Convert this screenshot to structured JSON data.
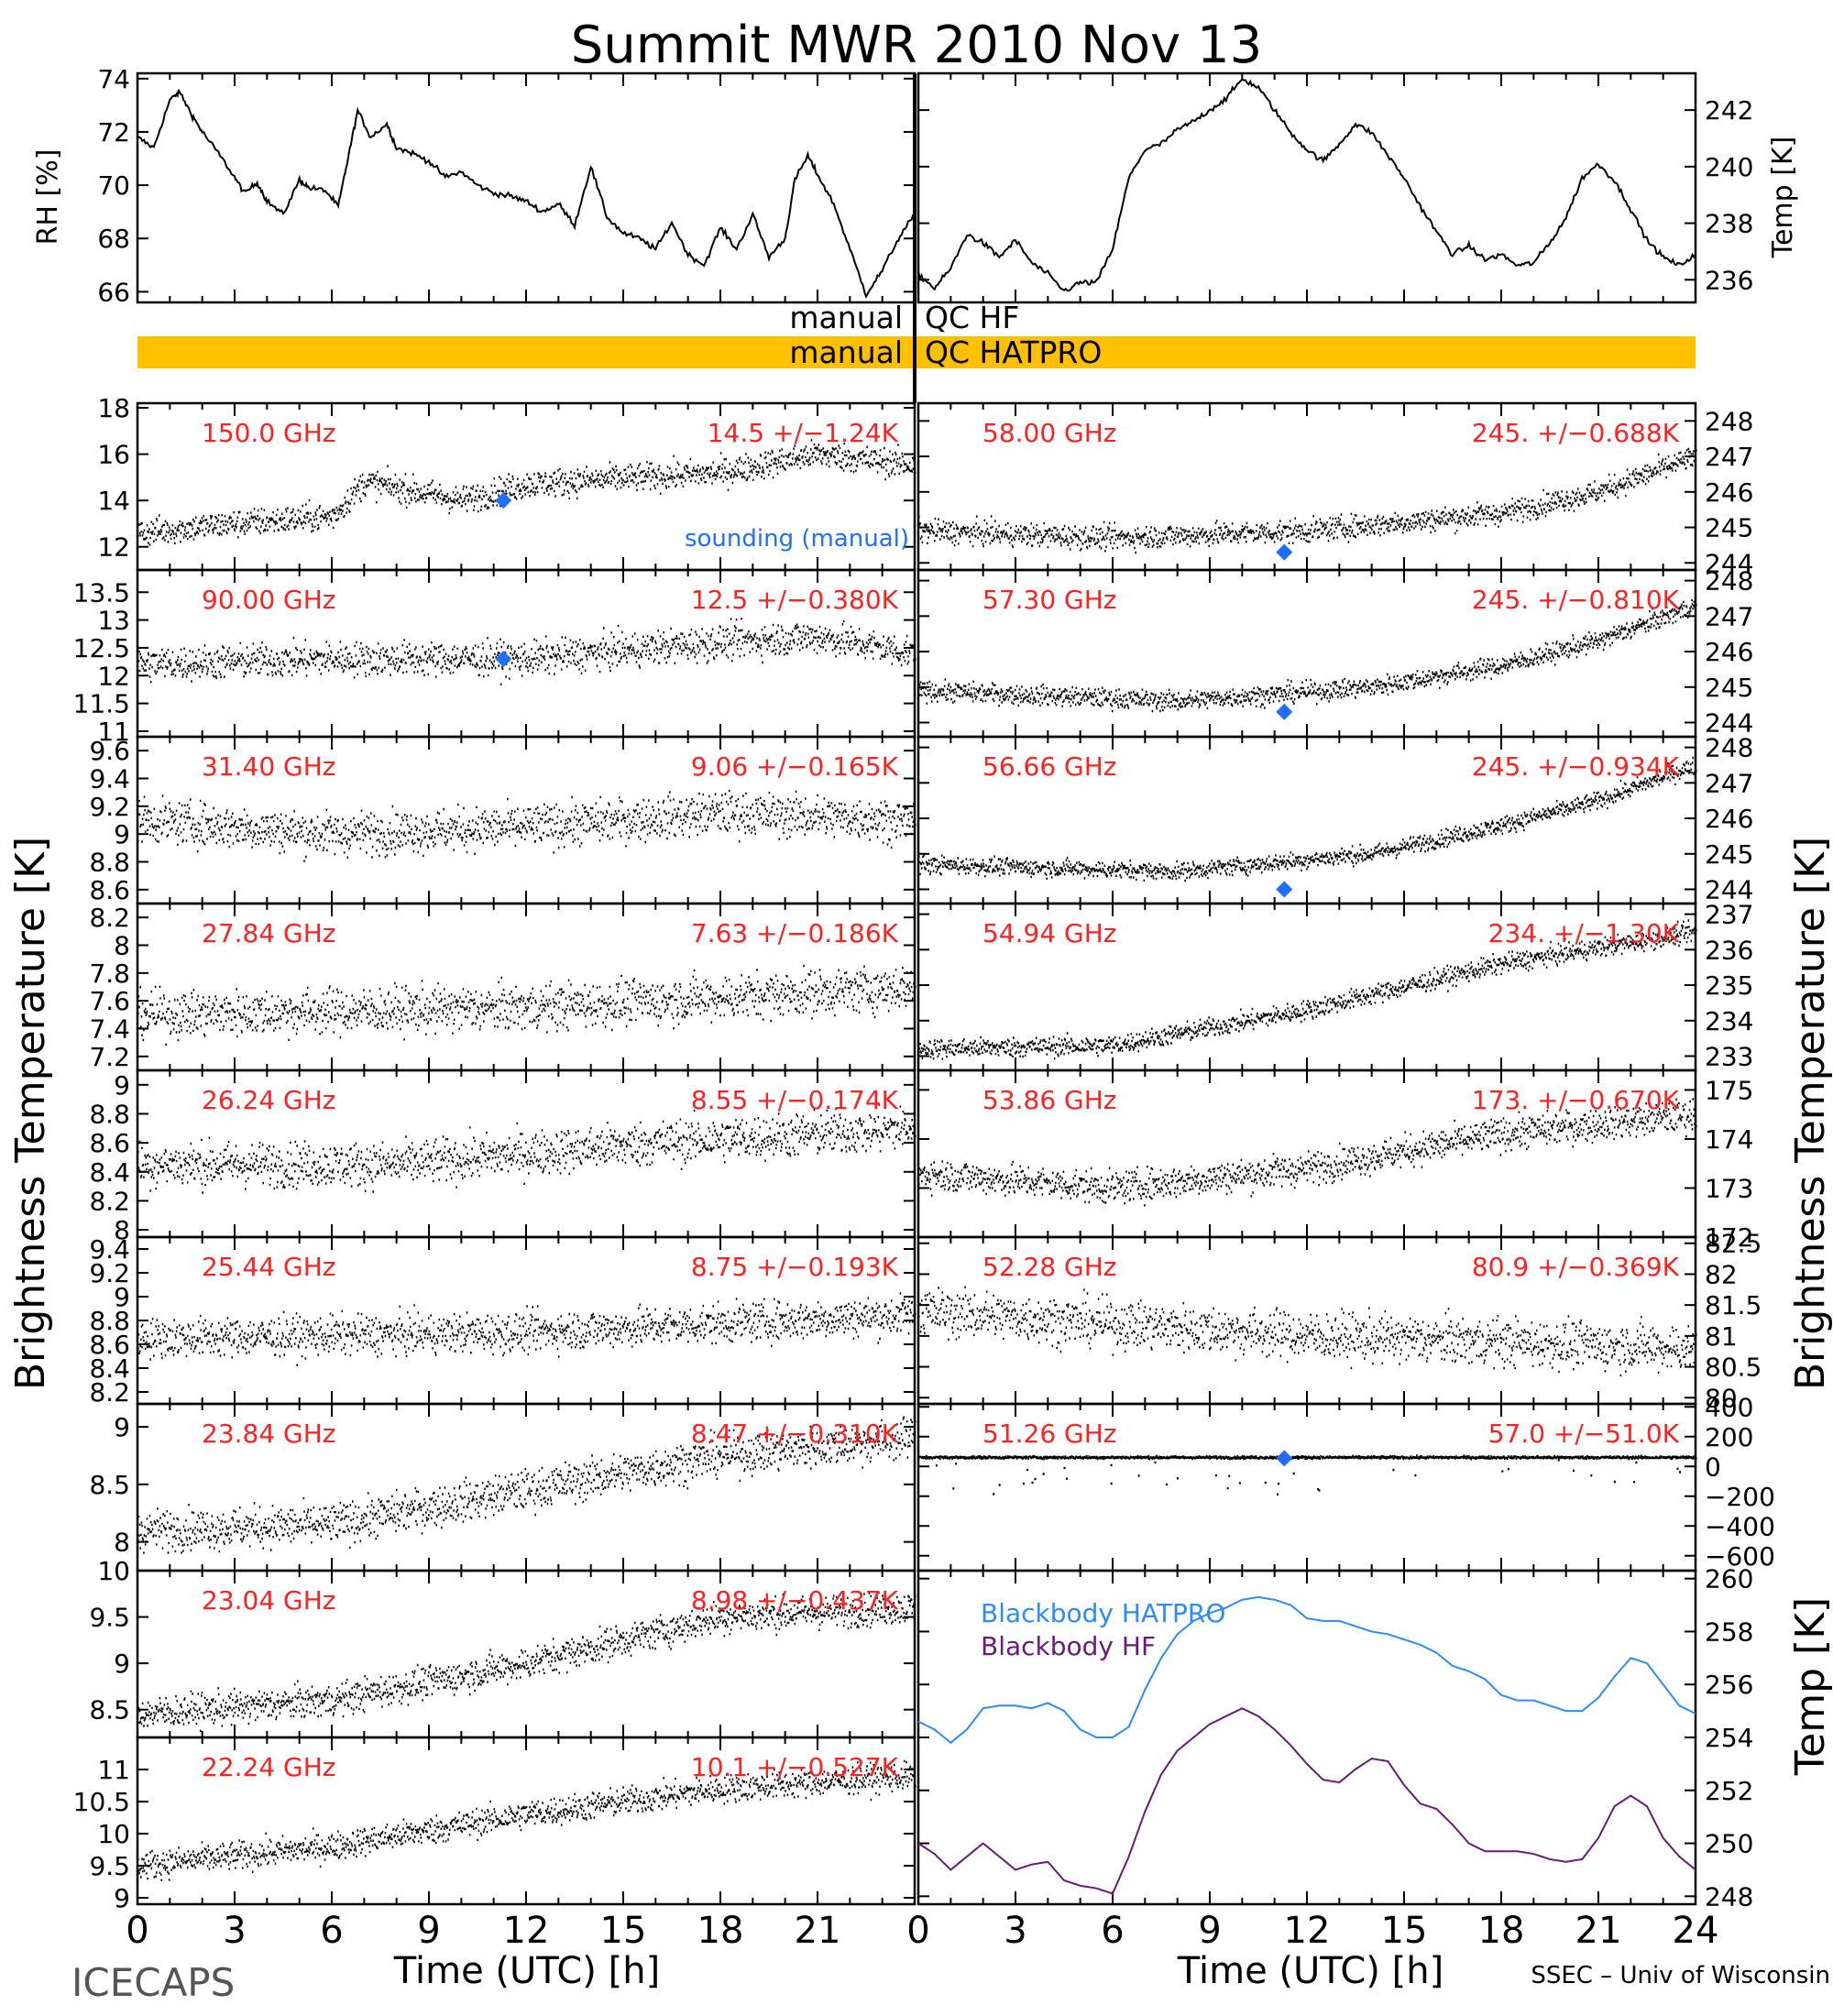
{
  "title": "Summit MWR 2010 Nov 13",
  "footer_left": "ICECAPS",
  "footer_right": "SSEC – Univ of Wisconsin",
  "colors": {
    "freq": "#ff2020",
    "sounding": "#1f6fff",
    "qc_bar": "#ffc000",
    "hatpro": "#2b8cff",
    "hf": "#6a1b7a",
    "data": "#000000"
  },
  "x_axis": {
    "label": "Time (UTC) [h]",
    "range": [
      0,
      24
    ],
    "ticks": [
      "0",
      "3",
      "6",
      "9",
      "12",
      "15",
      "18",
      "21",
      "24"
    ],
    "ticks_left": [
      "0",
      "3",
      "6",
      "9",
      "12",
      "15",
      "18",
      "21"
    ]
  },
  "qc": {
    "hf_left": "manual",
    "hf_right": "QC HF",
    "hatpro_left": "manual",
    "hatpro_right": "QC HATPRO"
  },
  "labels": {
    "bt_left": "Brightness Temperature [K]",
    "bt_right": "Brightness Temperature [K]",
    "temp_k": "Temp [K]",
    "sounding": "sounding (manual)"
  },
  "chart_data": [
    {
      "id": "rh",
      "type": "line",
      "ylabel": "RH [%]",
      "ylim": [
        65.6,
        74.2
      ],
      "ticks": [
        66,
        68,
        70,
        72,
        74
      ],
      "x": [
        0,
        0.5,
        1,
        1.3,
        1.7,
        2,
        2.5,
        3,
        3.3,
        3.7,
        4,
        4.5,
        5,
        5.3,
        5.8,
        6.2,
        6.5,
        6.8,
        7.2,
        7.7,
        8,
        8.5,
        9,
        9.5,
        10,
        10.5,
        11,
        11.5,
        12,
        12.5,
        13,
        13.5,
        14,
        14.5,
        15,
        15.5,
        16,
        16.5,
        17,
        17.5,
        18,
        18.5,
        19,
        19.5,
        20,
        20.3,
        20.7,
        21,
        21.5,
        22,
        22.5,
        23,
        23.5,
        24
      ],
      "y": [
        71.8,
        71.4,
        73.2,
        73.5,
        72.6,
        72.0,
        71.2,
        70.3,
        69.7,
        70.1,
        69.4,
        68.9,
        70.2,
        69.9,
        69.8,
        69.2,
        71.0,
        72.8,
        71.8,
        72.3,
        71.4,
        71.2,
        70.9,
        70.3,
        70.5,
        70.0,
        69.7,
        69.6,
        69.4,
        69.0,
        69.3,
        68.5,
        70.7,
        68.8,
        68.2,
        68.0,
        67.6,
        68.6,
        67.4,
        67.0,
        68.4,
        67.6,
        68.9,
        67.3,
        68.0,
        70.2,
        71.1,
        70.4,
        69.3,
        67.6,
        65.9,
        66.8,
        68.0,
        68.9
      ]
    },
    {
      "id": "temp",
      "type": "line",
      "ylabel": "Temp [K]",
      "ylim": [
        235.2,
        243.3
      ],
      "ticks": [
        236,
        238,
        240,
        242
      ],
      "x": [
        0,
        0.5,
        1,
        1.5,
        2,
        2.5,
        3,
        3.5,
        4,
        4.5,
        5,
        5.5,
        6,
        6.5,
        7,
        7.5,
        8,
        8.5,
        9,
        9.5,
        10,
        10.5,
        11,
        11.5,
        12,
        12.5,
        13,
        13.5,
        14,
        14.5,
        15,
        15.5,
        16,
        16.5,
        17,
        17.5,
        18,
        18.5,
        19,
        19.5,
        20,
        20.5,
        21,
        21.5,
        22,
        22.5,
        23,
        23.5,
        24
      ],
      "y": [
        236.2,
        235.7,
        236.4,
        237.6,
        237.3,
        236.8,
        237.4,
        236.6,
        236.2,
        235.6,
        235.9,
        235.9,
        237.1,
        239.6,
        240.6,
        240.8,
        241.3,
        241.6,
        242.0,
        242.4,
        243.1,
        242.8,
        242.0,
        241.2,
        240.6,
        240.2,
        240.8,
        241.5,
        241.2,
        240.4,
        239.6,
        238.6,
        237.7,
        236.9,
        237.2,
        236.7,
        236.9,
        236.5,
        236.6,
        237.3,
        238.2,
        239.6,
        240.1,
        239.5,
        238.5,
        237.4,
        236.8,
        236.5,
        236.9
      ]
    },
    {
      "id": "l150",
      "type": "scatter",
      "label": "150.0 GHz",
      "stat": "14.5 +/−1.24K",
      "ylim": [
        11.0,
        18.2
      ],
      "ticks": [
        12,
        14,
        16,
        18
      ],
      "base": [
        [
          0,
          12.6
        ],
        [
          3,
          13.0
        ],
        [
          6,
          13.3
        ],
        [
          7,
          14.8
        ],
        [
          10,
          14.0
        ],
        [
          12,
          14.7
        ],
        [
          18,
          15.2
        ],
        [
          21,
          16.0
        ],
        [
          24,
          15.5
        ]
      ],
      "noise": 0.55,
      "sounding": {
        "x": 11.3,
        "y": 14.0
      }
    },
    {
      "id": "l90",
      "type": "scatter",
      "label": "90.00 GHz",
      "stat": "12.5 +/−0.380K",
      "ylim": [
        10.9,
        13.9
      ],
      "ticks": [
        11.0,
        11.5,
        12.0,
        12.5,
        13.0,
        13.5
      ],
      "base": [
        [
          0,
          12.2
        ],
        [
          6,
          12.3
        ],
        [
          12,
          12.3
        ],
        [
          18,
          12.6
        ],
        [
          21,
          12.7
        ],
        [
          24,
          12.4
        ]
      ],
      "noise": 0.28,
      "sounding": {
        "x": 11.3,
        "y": 12.3
      }
    },
    {
      "id": "l31",
      "type": "scatter",
      "label": "31.40 GHz",
      "stat": "9.06 +/−0.165K",
      "ylim": [
        8.5,
        9.7
      ],
      "ticks": [
        8.6,
        8.8,
        9.0,
        9.2,
        9.4,
        9.6
      ],
      "base": [
        [
          0,
          9.1
        ],
        [
          6,
          9.0
        ],
        [
          12,
          9.05
        ],
        [
          18,
          9.15
        ],
        [
          24,
          9.1
        ]
      ],
      "noise": 0.14
    },
    {
      "id": "l2784",
      "type": "scatter",
      "label": "27.84 GHz",
      "stat": "7.63 +/−0.186K",
      "ylim": [
        7.1,
        8.3
      ],
      "ticks": [
        7.2,
        7.4,
        7.6,
        7.8,
        8.0,
        8.2
      ],
      "base": [
        [
          0,
          7.5
        ],
        [
          12,
          7.55
        ],
        [
          24,
          7.7
        ]
      ],
      "noise": 0.15
    },
    {
      "id": "l2624",
      "type": "scatter",
      "label": "26.24 GHz",
      "stat": "8.55 +/−0.174K",
      "ylim": [
        7.95,
        9.1
      ],
      "ticks": [
        8.0,
        8.2,
        8.4,
        8.6,
        8.8,
        9.0
      ],
      "base": [
        [
          0,
          8.45
        ],
        [
          8,
          8.45
        ],
        [
          16,
          8.6
        ],
        [
          24,
          8.7
        ]
      ],
      "noise": 0.14
    },
    {
      "id": "l2544",
      "type": "scatter",
      "label": "25.44 GHz",
      "stat": "8.75 +/−0.193K",
      "ylim": [
        8.1,
        9.5
      ],
      "ticks": [
        8.2,
        8.4,
        8.6,
        8.8,
        9.0,
        9.2,
        9.4
      ],
      "base": [
        [
          0,
          8.65
        ],
        [
          12,
          8.7
        ],
        [
          24,
          8.85
        ]
      ],
      "noise": 0.15
    },
    {
      "id": "l2384",
      "type": "scatter",
      "label": "23.84 GHz",
      "stat": "8.47 +/−0.310K",
      "ylim": [
        7.75,
        9.2
      ],
      "ticks": [
        8.0,
        8.5,
        9.0
      ],
      "base": [
        [
          0,
          8.1
        ],
        [
          6,
          8.15
        ],
        [
          12,
          8.45
        ],
        [
          18,
          8.75
        ],
        [
          24,
          8.9
        ]
      ],
      "noise": 0.16
    },
    {
      "id": "l2304",
      "type": "scatter",
      "label": "23.04 GHz",
      "stat": "8.98 +/−0.437K",
      "ylim": [
        8.2,
        10.0
      ],
      "ticks": [
        8.5,
        9.0,
        9.5,
        10.0
      ],
      "base": [
        [
          0,
          8.45
        ],
        [
          6,
          8.6
        ],
        [
          12,
          9.0
        ],
        [
          18,
          9.5
        ],
        [
          24,
          9.6
        ]
      ],
      "noise": 0.16
    },
    {
      "id": "l2224",
      "type": "scatter",
      "label": "22.24 GHz",
      "stat": "10.1 +/−0.527K",
      "ylim": [
        8.9,
        11.5
      ],
      "ticks": [
        9.0,
        9.5,
        10.0,
        10.5,
        11.0
      ],
      "base": [
        [
          0,
          9.5
        ],
        [
          6,
          9.8
        ],
        [
          12,
          10.3
        ],
        [
          18,
          10.7
        ],
        [
          24,
          10.9
        ]
      ],
      "noise": 0.2
    },
    {
      "id": "r58",
      "type": "scatter",
      "label": "58.00 GHz",
      "stat": "245. +/−0.688K",
      "ylim": [
        243.8,
        248.5
      ],
      "ticks": [
        244,
        245,
        246,
        247,
        248
      ],
      "base": [
        [
          0,
          244.9
        ],
        [
          6,
          244.7
        ],
        [
          12,
          244.9
        ],
        [
          18,
          245.4
        ],
        [
          21,
          246.0
        ],
        [
          24,
          247.0
        ]
      ],
      "noise": 0.3,
      "sounding": {
        "x": 11.3,
        "y": 244.3
      }
    },
    {
      "id": "r573",
      "type": "scatter",
      "label": "57.30 GHz",
      "stat": "245. +/−0.810K",
      "ylim": [
        243.6,
        248.3
      ],
      "ticks": [
        244,
        245,
        246,
        247,
        248
      ],
      "base": [
        [
          0,
          244.9
        ],
        [
          8,
          244.6
        ],
        [
          14,
          245.0
        ],
        [
          18,
          245.6
        ],
        [
          21,
          246.3
        ],
        [
          24,
          247.3
        ]
      ],
      "noise": 0.25,
      "sounding": {
        "x": 11.3,
        "y": 244.3
      }
    },
    {
      "id": "r5666",
      "type": "scatter",
      "label": "56.66 GHz",
      "stat": "245. +/−0.934K",
      "ylim": [
        243.6,
        248.3
      ],
      "ticks": [
        244,
        245,
        246,
        247,
        248
      ],
      "base": [
        [
          0,
          244.7
        ],
        [
          8,
          244.5
        ],
        [
          14,
          245.0
        ],
        [
          18,
          245.8
        ],
        [
          21,
          246.5
        ],
        [
          24,
          247.5
        ]
      ],
      "noise": 0.22,
      "sounding": {
        "x": 11.3,
        "y": 244.0
      }
    },
    {
      "id": "r5494",
      "type": "scatter",
      "label": "54.94 GHz",
      "stat": "234. +/−1.30K",
      "ylim": [
        232.6,
        237.3
      ],
      "ticks": [
        233,
        234,
        235,
        236,
        237
      ],
      "base": [
        [
          0,
          233.2
        ],
        [
          6,
          233.3
        ],
        [
          12,
          234.3
        ],
        [
          18,
          235.6
        ],
        [
          24,
          236.5
        ]
      ],
      "noise": 0.25
    },
    {
      "id": "r5386",
      "type": "scatter",
      "label": "53.86 GHz",
      "stat": "173. +/−0.670K",
      "ylim": [
        172.0,
        175.4
      ],
      "ticks": [
        172,
        173,
        174,
        175
      ],
      "base": [
        [
          0,
          173.3
        ],
        [
          6,
          173.0
        ],
        [
          12,
          173.4
        ],
        [
          18,
          174.1
        ],
        [
          24,
          174.5
        ]
      ],
      "noise": 0.3
    },
    {
      "id": "r5228",
      "type": "scatter",
      "label": "52.28 GHz",
      "stat": "80.9 +/−0.369K",
      "ylim": [
        79.9,
        82.6
      ],
      "ticks": [
        80.0,
        80.5,
        81.0,
        81.5,
        82.0,
        82.5
      ],
      "base": [
        [
          0,
          81.4
        ],
        [
          6,
          81.2
        ],
        [
          12,
          81.0
        ],
        [
          18,
          80.9
        ],
        [
          24,
          80.8
        ]
      ],
      "noise": 0.35
    },
    {
      "id": "r5126",
      "type": "scatter",
      "label": "51.26 GHz",
      "stat": "57.0 +/−51.0K",
      "ylim": [
        -700,
        420
      ],
      "ticks": [
        -600,
        -400,
        -200,
        0,
        200,
        400
      ],
      "base": [
        [
          0,
          60
        ],
        [
          24,
          60
        ]
      ],
      "noise": 8,
      "outliers": true,
      "sounding": {
        "x": 11.3,
        "y": 55
      }
    },
    {
      "id": "bb",
      "type": "line",
      "ylabel": "Temp [K]",
      "ylim": [
        247.7,
        260.3
      ],
      "ticks": [
        248,
        250,
        252,
        254,
        256,
        258,
        260
      ],
      "series": [
        {
          "name": "Blackbody HATPRO",
          "x": [
            0,
            0.5,
            1,
            1.5,
            2,
            2.5,
            3,
            3.5,
            4,
            4.5,
            5,
            5.5,
            6,
            6.5,
            7,
            7.5,
            8,
            8.5,
            9,
            9.5,
            10,
            10.5,
            11,
            11.5,
            12,
            12.5,
            13,
            13.5,
            14,
            14.5,
            15,
            15.5,
            16,
            16.5,
            17,
            17.5,
            18,
            18.5,
            19,
            19.5,
            20,
            20.5,
            21,
            21.5,
            22,
            22.5,
            23,
            23.5,
            24
          ],
          "y": [
            254.6,
            254.3,
            253.8,
            254.3,
            255.1,
            255.2,
            255.2,
            255.1,
            255.3,
            255.0,
            254.3,
            254.0,
            254.0,
            254.4,
            255.8,
            257.0,
            257.9,
            258.4,
            258.7,
            258.9,
            259.2,
            259.3,
            259.2,
            259.0,
            258.5,
            258.4,
            258.4,
            258.2,
            258.0,
            257.9,
            257.7,
            257.5,
            257.2,
            256.7,
            256.5,
            256.2,
            255.6,
            255.4,
            255.4,
            255.2,
            255.0,
            255.0,
            255.5,
            256.3,
            257.0,
            256.8,
            256.0,
            255.2,
            254.9
          ]
        },
        {
          "name": "Blackbody HF",
          "x": [
            0,
            0.5,
            1,
            1.5,
            2,
            2.5,
            3,
            3.5,
            4,
            4.5,
            5,
            5.5,
            6,
            6.5,
            7,
            7.5,
            8,
            8.5,
            9,
            9.5,
            10,
            10.5,
            11,
            11.5,
            12,
            12.5,
            13,
            13.5,
            14,
            14.5,
            15,
            15.5,
            16,
            16.5,
            17,
            17.5,
            18,
            18.5,
            19,
            19.5,
            20,
            20.5,
            21,
            21.5,
            22,
            22.5,
            23,
            23.5,
            24
          ],
          "y": [
            250.0,
            249.6,
            249.0,
            249.5,
            250.0,
            249.5,
            249.0,
            249.2,
            249.3,
            248.6,
            248.4,
            248.3,
            248.1,
            249.5,
            251.2,
            252.6,
            253.5,
            254.0,
            254.5,
            254.8,
            255.1,
            254.8,
            254.3,
            253.7,
            253.0,
            252.4,
            252.3,
            252.8,
            253.2,
            253.1,
            252.2,
            251.5,
            251.3,
            250.7,
            250.0,
            249.7,
            249.7,
            249.7,
            249.6,
            249.4,
            249.3,
            249.4,
            250.2,
            251.4,
            251.8,
            251.4,
            250.2,
            249.5,
            249.0
          ]
        }
      ]
    }
  ]
}
